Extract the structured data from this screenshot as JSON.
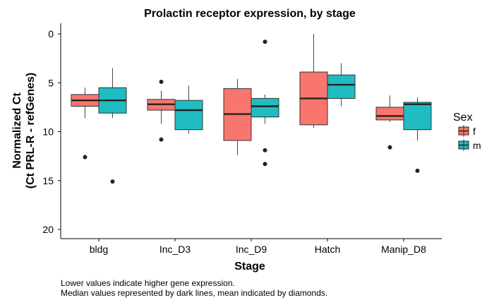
{
  "chart_data": {
    "type": "boxplot",
    "title": "Prolactin receptor expression, by stage",
    "xlabel": "Stage",
    "ylabel_lines": [
      "Normalized Ct",
      "(Ct PRL-R - refGenes)"
    ],
    "y_reversed": true,
    "ylim": [
      0,
      20
    ],
    "y_ticks": [
      0,
      5,
      10,
      15,
      20
    ],
    "categories": [
      "bldg",
      "Inc_D3",
      "Inc_D9",
      "Hatch",
      "Manip_D8"
    ],
    "legend": {
      "title": "Sex",
      "position": "right",
      "entries": [
        "f",
        "m"
      ]
    },
    "colors": {
      "f": "#f8766d",
      "m": "#1fbdc1"
    },
    "series": [
      {
        "name": "f",
        "boxes": [
          {
            "category": "bldg",
            "min": 5.5,
            "q1": 6.2,
            "median": 6.8,
            "q3": 7.4,
            "max": 8.6,
            "outliers": [
              12.6
            ]
          },
          {
            "category": "Inc_D3",
            "min": 5.8,
            "q1": 6.7,
            "median": 7.2,
            "q3": 7.8,
            "max": 9.2,
            "outliers": [
              4.9,
              10.8
            ]
          },
          {
            "category": "Inc_D9",
            "min": 4.6,
            "q1": 5.6,
            "median": 8.2,
            "q3": 10.9,
            "max": 12.4,
            "outliers": []
          },
          {
            "category": "Hatch",
            "min": 0.0,
            "q1": 3.9,
            "median": 6.6,
            "q3": 9.3,
            "max": 9.6,
            "outliers": []
          },
          {
            "category": "Manip_D8",
            "min": 6.3,
            "q1": 7.5,
            "median": 8.4,
            "q3": 8.8,
            "max": 9.0,
            "outliers": [
              11.6
            ]
          }
        ]
      },
      {
        "name": "m",
        "boxes": [
          {
            "category": "bldg",
            "min": 3.5,
            "q1": 5.5,
            "median": 6.8,
            "q3": 8.1,
            "max": 8.6,
            "outliers": [
              15.1
            ]
          },
          {
            "category": "Inc_D3",
            "min": 5.3,
            "q1": 6.8,
            "median": 7.8,
            "q3": 9.8,
            "max": 10.2,
            "outliers": []
          },
          {
            "category": "Inc_D9",
            "min": 6.2,
            "q1": 6.6,
            "median": 7.4,
            "q3": 8.5,
            "max": 9.2,
            "outliers": [
              0.8,
              11.9,
              13.3
            ]
          },
          {
            "category": "Hatch",
            "min": 3.0,
            "q1": 4.2,
            "median": 5.2,
            "q3": 6.6,
            "max": 7.4,
            "outliers": []
          },
          {
            "category": "Manip_D8",
            "min": 6.5,
            "q1": 7.0,
            "median": 7.2,
            "q3": 9.8,
            "max": 10.9,
            "outliers": [
              14.0
            ]
          }
        ]
      }
    ],
    "grid": false,
    "caption_lines": [
      "Lower values indicate higher gene expression.",
      "Median values represented by dark lines, mean indicated by diamonds."
    ]
  }
}
